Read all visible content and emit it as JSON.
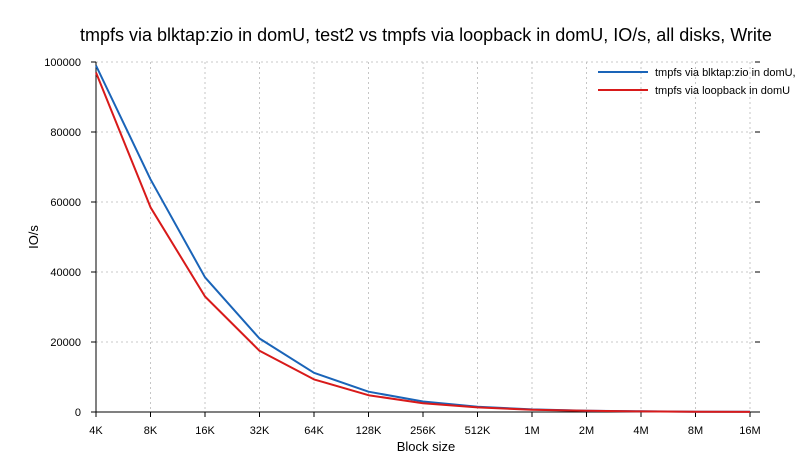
{
  "chart_data": {
    "type": "line",
    "title": "tmpfs via blktap:zio in domU, test2 vs tmpfs via loopback in domU, IO/s, all disks, Write",
    "xlabel": "Block size",
    "ylabel": "IO/s",
    "categories": [
      "4K",
      "8K",
      "16K",
      "32K",
      "64K",
      "128K",
      "256K",
      "512K",
      "1M",
      "2M",
      "4M",
      "8M",
      "16M"
    ],
    "ylim": [
      0,
      100000
    ],
    "yticks": [
      0,
      20000,
      40000,
      60000,
      80000,
      100000
    ],
    "grid": true,
    "legend_position": "top-right",
    "series": [
      {
        "name": "tmpfs via blktap:zio in domU, t",
        "color": "#1a64b8",
        "values": [
          99000,
          66500,
          38500,
          21000,
          11200,
          5800,
          3000,
          1500,
          750,
          380,
          190,
          95,
          50
        ]
      },
      {
        "name": "tmpfs via loopback in domU",
        "color": "#d81a1a",
        "values": [
          97000,
          58500,
          33000,
          17500,
          9300,
          4800,
          2500,
          1300,
          650,
          330,
          165,
          85,
          40
        ]
      }
    ]
  }
}
